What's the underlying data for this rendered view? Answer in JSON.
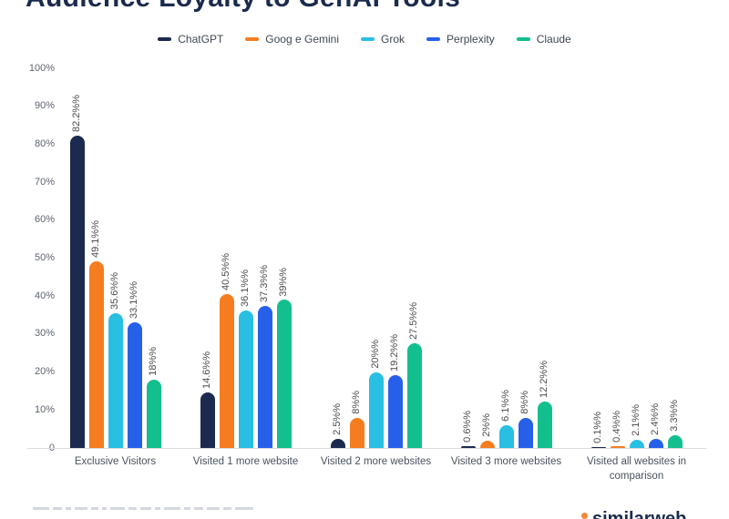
{
  "page": {
    "title": "Audience Loyalty to GenAI Tools"
  },
  "chart_data": {
    "type": "bar",
    "title": "Audience Loyalty to GenAI Tools",
    "xlabel": "",
    "ylabel": "",
    "ylim": [
      0,
      100
    ],
    "grid": false,
    "legend_position": "top",
    "y_ticks": [
      "100%",
      "90%",
      "80%",
      "70%",
      "60%",
      "50%",
      "40%",
      "30%",
      "20%",
      "10%",
      "0"
    ],
    "categories": [
      "Exclusive Visitors",
      "Visited 1 more website",
      "Visited 2 more websites",
      "Visited 3 more websites",
      "Visited all websites in comparison"
    ],
    "series": [
      {
        "name": "ChatGPT",
        "color": "#1b2a4e",
        "values": [
          82.2,
          14.6,
          2.5,
          0.6,
          0.1
        ],
        "labels": [
          "82.2%%",
          "14.6%%",
          "2.5%%",
          "0.6%%",
          "0.1%%"
        ]
      },
      {
        "name": "Goog e Gemini",
        "color": "#f57d20",
        "values": [
          49.1,
          40.5,
          8,
          2,
          0.4
        ],
        "labels": [
          "49.1%%",
          "40.5%%",
          "8%%",
          "2%%",
          "0.4%%"
        ]
      },
      {
        "name": "Grok",
        "color": "#29bfe2",
        "values": [
          35.6,
          36.1,
          20,
          6.1,
          2.1
        ],
        "labels": [
          "35.6%%",
          "36.1%%",
          "20%%",
          "6.1%%",
          "2.1%%"
        ]
      },
      {
        "name": "Perplexity",
        "color": "#2760e8",
        "values": [
          33.1,
          37.3,
          19.2,
          8,
          2.4
        ],
        "labels": [
          "33.1%%",
          "37.3%%",
          "19.2%%",
          "8%%",
          "2.4%%"
        ]
      },
      {
        "name": "Claude",
        "color": "#14bf8e",
        "values": [
          18,
          39,
          27.5,
          12.2,
          3.3
        ],
        "labels": [
          "18%%",
          "39%%",
          "27.5%%",
          "12.2%%",
          "3.3%%"
        ]
      }
    ]
  },
  "footer": {
    "brand": "similarweb"
  }
}
